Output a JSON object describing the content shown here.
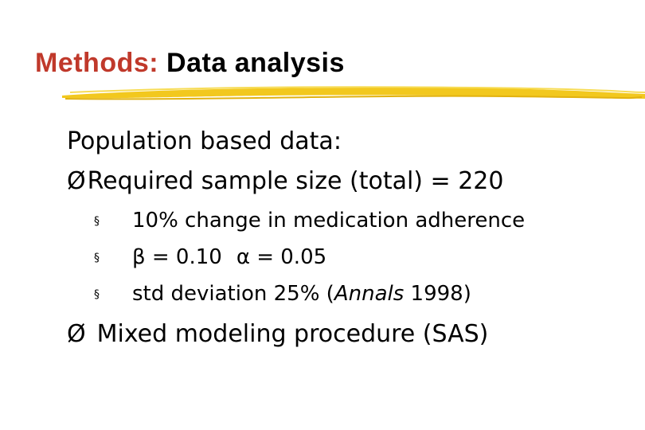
{
  "title": {
    "prefix": "Methods:",
    "main": "Data analysis"
  },
  "body": {
    "line1": "Population based data:",
    "line2_arrow": "Ø",
    "line2": "Required sample size (total) = 220",
    "bullet_glyph": "§",
    "sub1": "10% change in medication adherence",
    "sub2_beta": "β = 0.10",
    "sub2_alpha": "α = 0.05",
    "sub3_pre": "std deviation 25% (",
    "sub3_italic": "Annals",
    "sub3_post": " 1998)",
    "line3_arrow": "Ø",
    "line3": "Mixed modeling procedure (SAS)"
  },
  "colors": {
    "title_accent": "#c0392b",
    "underline": "#f2c81e"
  }
}
